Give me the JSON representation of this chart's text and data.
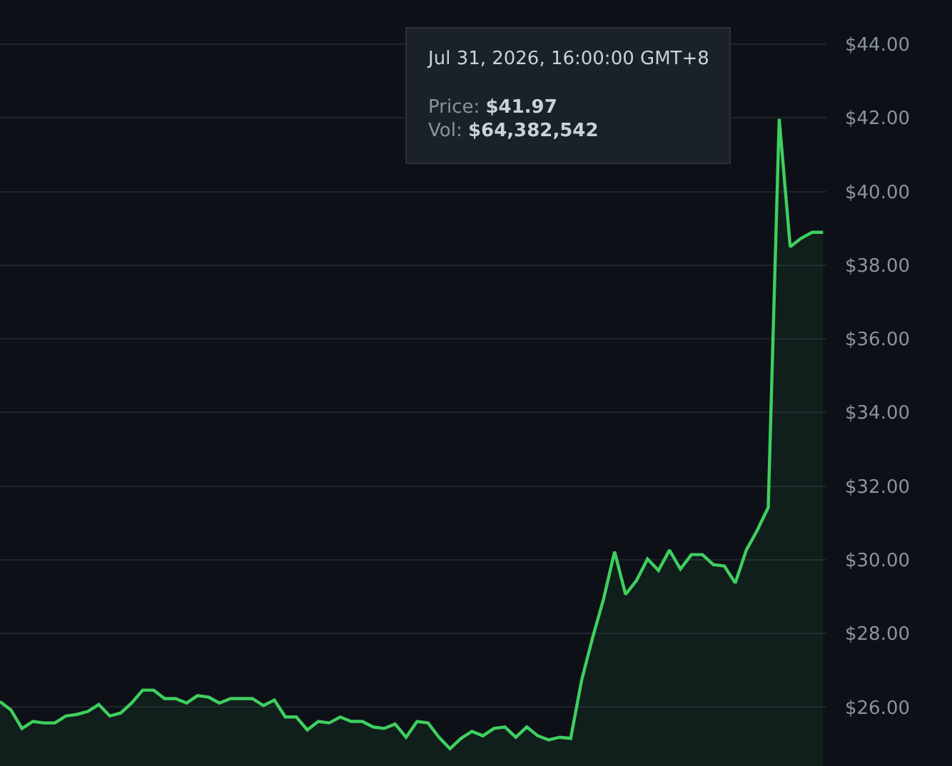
{
  "chart_data": {
    "type": "area",
    "categories": [
      null,
      null,
      null,
      null,
      null,
      null,
      null,
      null,
      null,
      null,
      null,
      null,
      null,
      null,
      null,
      null,
      null,
      null,
      null,
      null,
      null,
      null,
      null,
      null,
      null,
      null,
      null,
      null,
      null,
      null,
      null,
      null,
      null,
      null,
      null,
      null,
      null,
      null,
      null,
      null,
      null,
      null,
      null,
      null,
      null,
      null,
      null,
      null,
      null,
      null,
      null,
      null,
      null,
      null,
      null,
      null,
      null,
      null,
      null,
      null,
      null,
      null,
      null,
      null,
      null,
      null,
      null,
      null,
      null,
      null,
      null,
      null,
      null,
      null,
      null,
      null
    ],
    "series": [
      {
        "color": "#3fcf5f",
        "values": [
          26.15,
          25.92,
          25.42,
          25.61,
          25.57,
          25.57,
          25.76,
          25.8,
          25.88,
          26.07,
          25.76,
          25.84,
          26.11,
          26.46,
          26.46,
          26.23,
          26.23,
          26.11,
          26.31,
          26.27,
          26.11,
          26.23,
          26.23,
          26.23,
          26.04,
          26.19,
          25.73,
          25.73,
          25.38,
          25.61,
          25.57,
          25.73,
          25.61,
          25.61,
          25.46,
          25.42,
          25.54,
          25.18,
          25.61,
          25.57,
          25.18,
          24.87,
          25.15,
          25.34,
          25.22,
          25.42,
          25.46,
          25.18,
          25.46,
          25.22,
          25.11,
          25.18,
          25.15,
          26.73,
          27.89,
          28.94,
          30.22,
          29.06,
          29.44,
          30.02,
          29.71,
          30.26,
          29.75,
          30.14,
          30.14,
          29.87,
          29.83,
          29.37,
          30.26,
          30.8,
          31.42,
          41.97,
          38.5,
          38.73,
          38.89,
          38.89
        ]
      }
    ],
    "ylim": [
      24.4,
      45.2
    ],
    "yticks": [
      {
        "value": 26,
        "label": "$26.00"
      },
      {
        "value": 28,
        "label": "$28.00"
      },
      {
        "value": 30,
        "label": "$30.00"
      },
      {
        "value": 32,
        "label": "$32.00"
      },
      {
        "value": 34,
        "label": "$34.00"
      },
      {
        "value": 36,
        "label": "$36.00"
      },
      {
        "value": 38,
        "label": "$38.00"
      },
      {
        "value": 40,
        "label": "$40.00"
      },
      {
        "value": 42,
        "label": "$42.00"
      },
      {
        "value": 44,
        "label": "$44.00"
      }
    ],
    "annotations": [
      "Jul 31, 2026, 16:00:00 GMT+8",
      "Price: $41.97",
      "Vol: $64,382,542"
    ],
    "grid": "y",
    "legend": false,
    "marker": "none",
    "line_style": "solid"
  }
}
